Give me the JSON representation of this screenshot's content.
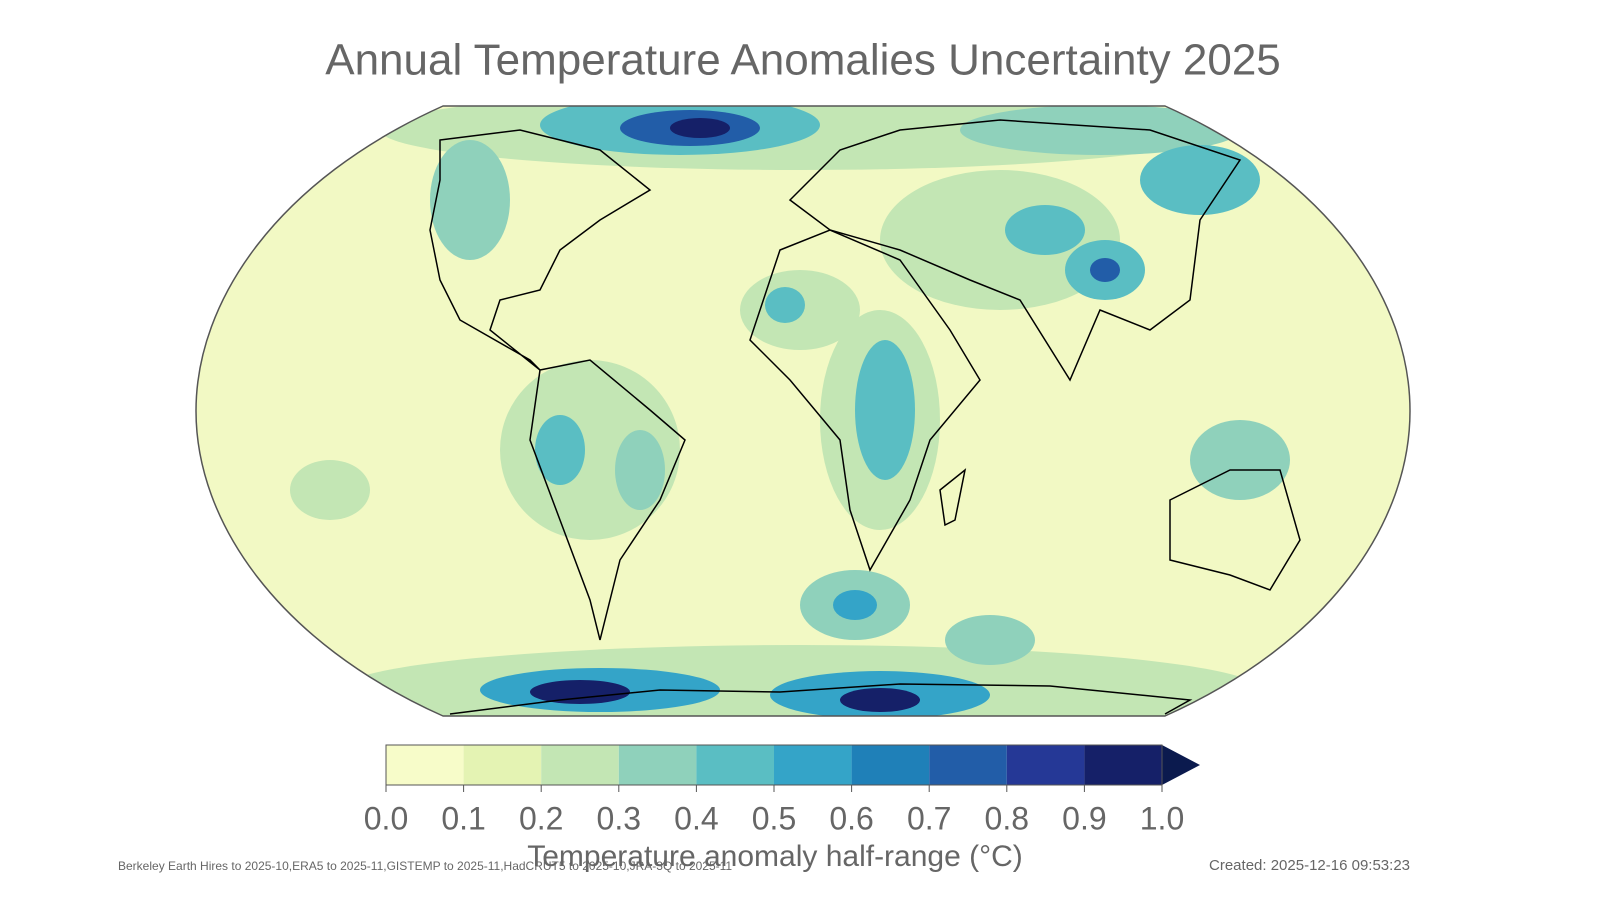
{
  "chart_data": {
    "type": "map",
    "title": "Annual Temperature Anomalies Uncertainty 2025",
    "colorbar": {
      "label": "Temperature anomaly half-range (°C)",
      "ticks": [
        {
          "value": 0,
          "label": "0.0"
        },
        0.1,
        0.2,
        0.3,
        0.4,
        0.5,
        0.6,
        0.7,
        0.8,
        0.9,
        {
          "value": 1,
          "label": "1.0"
        }
      ],
      "colors": [
        "#f7fcc9",
        "#e4f3b3",
        "#c3e6b4",
        "#8fd1bb",
        "#5abec3",
        "#34a4c8",
        "#1f80b8",
        "#225da8",
        "#253896",
        "#152068"
      ],
      "extend_color": "#0b1a4e"
    },
    "source_note": "Berkeley Earth Hires to 2025-10,ERA5 to 2025-11,GISTEMP to 2025-11,HadCRUT5 to 2025-10,JRA-3Q to 2025-11",
    "created": "Created: 2025-12-16 09:53:23"
  }
}
